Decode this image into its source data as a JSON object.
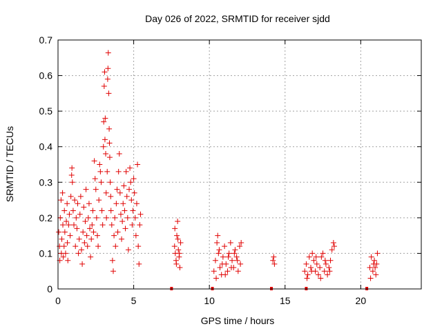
{
  "chart_data": {
    "type": "scatter",
    "title": "Day 026 of 2022, SRMTID for receiver sjdd",
    "xlabel": "GPS time / hours",
    "ylabel": "SRMTID / TECUs",
    "xlim": [
      0,
      24
    ],
    "ylim": [
      0,
      0.7
    ],
    "xticks": [
      0,
      5,
      10,
      15,
      20
    ],
    "yticks": [
      0,
      0.1,
      0.2,
      0.3,
      0.4,
      0.5,
      0.6,
      0.7
    ],
    "x_tick_labels": [
      "0",
      "5",
      "10",
      "15",
      "20"
    ],
    "y_tick_labels": [
      "0",
      "0.1",
      "0.2",
      "0.3",
      "0.4",
      "0.5",
      "0.6",
      "0.7"
    ],
    "grid": true,
    "marker": "+",
    "color": "#e00000",
    "series": [
      {
        "name": "SRMTID",
        "points": [
          [
            0.05,
            0.16
          ],
          [
            0.1,
            0.12
          ],
          [
            0.12,
            0.08
          ],
          [
            0.15,
            0.2
          ],
          [
            0.2,
            0.25
          ],
          [
            0.22,
            0.1
          ],
          [
            0.25,
            0.14
          ],
          [
            0.3,
            0.27
          ],
          [
            0.32,
            0.18
          ],
          [
            0.35,
            0.09
          ],
          [
            0.4,
            0.12
          ],
          [
            0.42,
            0.22
          ],
          [
            0.45,
            0.16
          ],
          [
            0.5,
            0.1
          ],
          [
            0.55,
            0.19
          ],
          [
            0.6,
            0.24
          ],
          [
            0.62,
            0.13
          ],
          [
            0.65,
            0.08
          ],
          [
            0.7,
            0.18
          ],
          [
            0.75,
            0.21
          ],
          [
            0.8,
            0.15
          ],
          [
            0.85,
            0.26
          ],
          [
            0.9,
            0.32
          ],
          [
            0.92,
            0.34
          ],
          [
            0.95,
            0.3
          ],
          [
            1.0,
            0.22
          ],
          [
            1.05,
            0.18
          ],
          [
            1.1,
            0.25
          ],
          [
            1.15,
            0.12
          ],
          [
            1.2,
            0.2
          ],
          [
            1.25,
            0.17
          ],
          [
            1.3,
            0.24
          ],
          [
            1.35,
            0.1
          ],
          [
            1.4,
            0.14
          ],
          [
            1.45,
            0.21
          ],
          [
            1.5,
            0.26
          ],
          [
            1.55,
            0.11
          ],
          [
            1.6,
            0.07
          ],
          [
            1.65,
            0.16
          ],
          [
            1.7,
            0.23
          ],
          [
            1.75,
            0.13
          ],
          [
            1.8,
            0.19
          ],
          [
            1.85,
            0.28
          ],
          [
            1.9,
            0.15
          ],
          [
            1.95,
            0.12
          ],
          [
            2.0,
            0.2
          ],
          [
            2.05,
            0.24
          ],
          [
            2.1,
            0.17
          ],
          [
            2.15,
            0.09
          ],
          [
            2.2,
            0.14
          ],
          [
            2.25,
            0.18
          ],
          [
            2.3,
            0.22
          ],
          [
            2.35,
            0.16
          ],
          [
            2.4,
            0.36
          ],
          [
            2.45,
            0.31
          ],
          [
            2.5,
            0.28
          ],
          [
            2.55,
            0.2
          ],
          [
            2.6,
            0.15
          ],
          [
            2.65,
            0.12
          ],
          [
            2.7,
            0.25
          ],
          [
            2.75,
            0.35
          ],
          [
            2.8,
            0.33
          ],
          [
            2.85,
            0.3
          ],
          [
            2.9,
            0.22
          ],
          [
            2.95,
            0.18
          ],
          [
            3.0,
            0.4
          ],
          [
            3.02,
            0.47
          ],
          [
            3.05,
            0.57
          ],
          [
            3.08,
            0.61
          ],
          [
            3.1,
            0.42
          ],
          [
            3.12,
            0.48
          ],
          [
            3.15,
            0.38
          ],
          [
            3.18,
            0.27
          ],
          [
            3.2,
            0.2
          ],
          [
            3.25,
            0.33
          ],
          [
            3.28,
            0.59
          ],
          [
            3.3,
            0.62
          ],
          [
            3.32,
            0.664
          ],
          [
            3.35,
            0.55
          ],
          [
            3.38,
            0.45
          ],
          [
            3.4,
            0.41
          ],
          [
            3.42,
            0.37
          ],
          [
            3.45,
            0.3
          ],
          [
            3.48,
            0.26
          ],
          [
            3.5,
            0.22
          ],
          [
            3.55,
            0.18
          ],
          [
            3.6,
            0.08
          ],
          [
            3.65,
            0.05
          ],
          [
            3.7,
            0.15
          ],
          [
            3.75,
            0.2
          ],
          [
            3.8,
            0.12
          ],
          [
            3.85,
            0.24
          ],
          [
            3.9,
            0.28
          ],
          [
            3.95,
            0.16
          ],
          [
            4.0,
            0.33
          ],
          [
            4.05,
            0.38
          ],
          [
            4.1,
            0.27
          ],
          [
            4.15,
            0.21
          ],
          [
            4.2,
            0.14
          ],
          [
            4.25,
            0.19
          ],
          [
            4.3,
            0.24
          ],
          [
            4.35,
            0.29
          ],
          [
            4.4,
            0.22
          ],
          [
            4.45,
            0.17
          ],
          [
            4.5,
            0.33
          ],
          [
            4.55,
            0.26
          ],
          [
            4.6,
            0.2
          ],
          [
            4.65,
            0.11
          ],
          [
            4.7,
            0.28
          ],
          [
            4.75,
            0.34
          ],
          [
            4.8,
            0.3
          ],
          [
            4.85,
            0.25
          ],
          [
            4.9,
            0.18
          ],
          [
            4.95,
            0.22
          ],
          [
            5.0,
            0.31
          ],
          [
            5.05,
            0.27
          ],
          [
            5.1,
            0.2
          ],
          [
            5.15,
            0.15
          ],
          [
            5.2,
            0.24
          ],
          [
            5.25,
            0.35
          ],
          [
            5.3,
            0.12
          ],
          [
            5.35,
            0.07
          ],
          [
            5.4,
            0.18
          ],
          [
            5.45,
            0.21
          ],
          [
            7.7,
            0.12
          ],
          [
            7.75,
            0.1
          ],
          [
            7.8,
            0.08
          ],
          [
            7.85,
            0.15
          ],
          [
            7.9,
            0.19
          ],
          [
            7.95,
            0.11
          ],
          [
            8.0,
            0.09
          ],
          [
            8.05,
            0.06
          ],
          [
            8.1,
            0.13
          ],
          [
            7.72,
            0.17
          ],
          [
            7.82,
            0.07
          ],
          [
            7.92,
            0.14
          ],
          [
            8.02,
            0.1
          ],
          [
            10.3,
            0.05
          ],
          [
            10.4,
            0.08
          ],
          [
            10.5,
            0.13
          ],
          [
            10.55,
            0.15
          ],
          [
            10.6,
            0.1
          ],
          [
            10.7,
            0.06
          ],
          [
            10.8,
            0.04
          ],
          [
            10.9,
            0.09
          ],
          [
            11.0,
            0.12
          ],
          [
            11.1,
            0.07
          ],
          [
            11.2,
            0.05
          ],
          [
            11.3,
            0.1
          ],
          [
            11.4,
            0.13
          ],
          [
            11.5,
            0.08
          ],
          [
            11.6,
            0.06
          ],
          [
            11.7,
            0.11
          ],
          [
            11.8,
            0.09
          ],
          [
            11.9,
            0.05
          ],
          [
            12.0,
            0.12
          ],
          [
            12.1,
            0.13
          ],
          [
            10.45,
            0.03
          ],
          [
            10.65,
            0.11
          ],
          [
            10.85,
            0.07
          ],
          [
            11.05,
            0.04
          ],
          [
            11.25,
            0.09
          ],
          [
            11.45,
            0.06
          ],
          [
            11.65,
            0.1
          ],
          [
            11.85,
            0.08
          ],
          [
            12.05,
            0.07
          ],
          [
            14.2,
            0.08
          ],
          [
            14.25,
            0.09
          ],
          [
            14.3,
            0.07
          ],
          [
            16.3,
            0.05
          ],
          [
            16.4,
            0.07
          ],
          [
            16.5,
            0.04
          ],
          [
            16.6,
            0.09
          ],
          [
            16.7,
            0.06
          ],
          [
            16.8,
            0.1
          ],
          [
            16.9,
            0.08
          ],
          [
            17.0,
            0.05
          ],
          [
            17.1,
            0.07
          ],
          [
            17.2,
            0.04
          ],
          [
            17.3,
            0.06
          ],
          [
            17.4,
            0.09
          ],
          [
            17.5,
            0.1
          ],
          [
            17.6,
            0.05
          ],
          [
            17.7,
            0.07
          ],
          [
            17.8,
            0.04
          ],
          [
            17.9,
            0.06
          ],
          [
            18.0,
            0.08
          ],
          [
            18.1,
            0.11
          ],
          [
            18.2,
            0.13
          ],
          [
            18.25,
            0.12
          ],
          [
            16.45,
            0.03
          ],
          [
            16.75,
            0.05
          ],
          [
            17.05,
            0.09
          ],
          [
            17.35,
            0.03
          ],
          [
            17.65,
            0.08
          ],
          [
            17.95,
            0.05
          ],
          [
            20.6,
            0.06
          ],
          [
            20.7,
            0.09
          ],
          [
            20.8,
            0.05
          ],
          [
            20.9,
            0.08
          ],
          [
            21.0,
            0.04
          ],
          [
            21.05,
            0.07
          ],
          [
            21.1,
            0.1
          ],
          [
            20.65,
            0.03
          ],
          [
            20.85,
            0.07
          ],
          [
            20.95,
            0.06
          ]
        ]
      }
    ],
    "zero_markers_x": [
      7.5,
      10.2,
      14.1,
      16.4,
      20.4
    ]
  }
}
